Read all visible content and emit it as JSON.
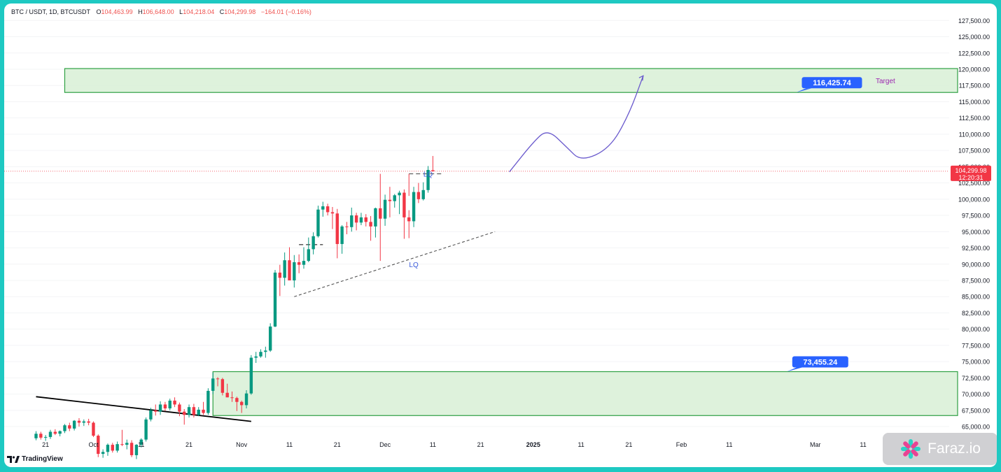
{
  "header": {
    "symbol": "BTC / USDT, 1D, BTCUSDT",
    "open_label": "O",
    "open": "104,463.99",
    "high_label": "H",
    "high": "106,648.00",
    "low_label": "L",
    "low": "104,218.04",
    "close_label": "C",
    "close": "104,299.98",
    "change": "−164.01 (−0.16%)"
  },
  "branding": {
    "tradingview": "TradingView",
    "watermark": "Faraz.io"
  },
  "colors": {
    "up": "#089981",
    "down": "#f23645",
    "zone_fill": "#d8f0d6",
    "zone_border": "#2ea043",
    "label_blue": "#2962ff",
    "projection": "#6a5acd",
    "target_text": "#9c27b0"
  },
  "chart_data": {
    "type": "candlestick",
    "title": "BTC / USDT, 1D, BTCUSDT",
    "y_axis": {
      "ylim": [
        63500,
        128500
      ],
      "ticks": [
        65000,
        67500,
        70000,
        72500,
        75000,
        77500,
        80000,
        82500,
        85000,
        87500,
        90000,
        92500,
        95000,
        97500,
        100000,
        102500,
        105000,
        107500,
        110000,
        112500,
        115000,
        117500,
        120000,
        122500,
        125000,
        127500
      ],
      "tick_labels": [
        "65,000.00",
        "67,500.00",
        "70,000.00",
        "72,500.00",
        "75,000.00",
        "77,500.00",
        "80,000.00",
        "82,500.00",
        "85,000.00",
        "87,500.00",
        "90,000.00",
        "92,500.00",
        "95,000.00",
        "97,500.00",
        "100,000.00",
        "102,500.00",
        "105,000.00",
        "107,500.00",
        "110,000.00",
        "112,500.00",
        "115,000.00",
        "117,500.00",
        "120,000.00",
        "122,500.00",
        "125,000.00",
        "127,500.00"
      ]
    },
    "x_axis": {
      "start_date": "2024-09-19",
      "ticks": [
        {
          "date": "2024-09-21",
          "label": "21"
        },
        {
          "date": "2024-10-01",
          "label": "Oct"
        },
        {
          "date": "2024-10-11",
          "label": "11"
        },
        {
          "date": "2024-10-21",
          "label": "21"
        },
        {
          "date": "2024-11-01",
          "label": "Nov"
        },
        {
          "date": "2024-11-11",
          "label": "11"
        },
        {
          "date": "2024-11-21",
          "label": "21"
        },
        {
          "date": "2024-12-01",
          "label": "Dec"
        },
        {
          "date": "2024-12-11",
          "label": "11"
        },
        {
          "date": "2024-12-21",
          "label": "21"
        },
        {
          "date": "2025-01-01",
          "label": "2025",
          "bold": true
        },
        {
          "date": "2025-01-11",
          "label": "11"
        },
        {
          "date": "2025-01-21",
          "label": "21"
        },
        {
          "date": "2025-02-01",
          "label": "Feb"
        },
        {
          "date": "2025-02-11",
          "label": "11"
        },
        {
          "date": "2025-03-01",
          "label": "Mar"
        },
        {
          "date": "2025-03-11",
          "label": "11"
        }
      ]
    },
    "candles": [
      {
        "o": 63200,
        "h": 64300,
        "l": 62900,
        "c": 63900
      },
      {
        "o": 63900,
        "h": 64200,
        "l": 63000,
        "c": 63300
      },
      {
        "o": 63300,
        "h": 63700,
        "l": 62800,
        "c": 63400
      },
      {
        "o": 63400,
        "h": 64500,
        "l": 63100,
        "c": 64200
      },
      {
        "o": 64200,
        "h": 64600,
        "l": 63700,
        "c": 63900
      },
      {
        "o": 63900,
        "h": 64400,
        "l": 63500,
        "c": 64300
      },
      {
        "o": 64300,
        "h": 65400,
        "l": 64000,
        "c": 65200
      },
      {
        "o": 65200,
        "h": 65600,
        "l": 64300,
        "c": 64700
      },
      {
        "o": 64700,
        "h": 66000,
        "l": 64400,
        "c": 65900
      },
      {
        "o": 65900,
        "h": 66300,
        "l": 65000,
        "c": 65600
      },
      {
        "o": 65600,
        "h": 66100,
        "l": 65100,
        "c": 65800
      },
      {
        "o": 65800,
        "h": 66200,
        "l": 65200,
        "c": 65600
      },
      {
        "o": 65600,
        "h": 65800,
        "l": 63400,
        "c": 63600
      },
      {
        "o": 63600,
        "h": 63800,
        "l": 60300,
        "c": 60800
      },
      {
        "o": 60800,
        "h": 61500,
        "l": 60200,
        "c": 61100
      },
      {
        "o": 61100,
        "h": 62400,
        "l": 60500,
        "c": 62200
      },
      {
        "o": 62200,
        "h": 62500,
        "l": 61000,
        "c": 61300
      },
      {
        "o": 61300,
        "h": 62700,
        "l": 61000,
        "c": 62300
      },
      {
        "o": 62300,
        "h": 64500,
        "l": 62000,
        "c": 62200
      },
      {
        "o": 62200,
        "h": 63000,
        "l": 61500,
        "c": 62500
      },
      {
        "o": 62500,
        "h": 62900,
        "l": 60300,
        "c": 60600
      },
      {
        "o": 60600,
        "h": 62300,
        "l": 60000,
        "c": 62200
      },
      {
        "o": 62200,
        "h": 63200,
        "l": 61800,
        "c": 63000
      },
      {
        "o": 63000,
        "h": 66400,
        "l": 62700,
        "c": 66100
      },
      {
        "o": 66100,
        "h": 67900,
        "l": 65800,
        "c": 67500
      },
      {
        "o": 67500,
        "h": 68400,
        "l": 66700,
        "c": 67300
      },
      {
        "o": 67300,
        "h": 68900,
        "l": 66800,
        "c": 68400
      },
      {
        "o": 68400,
        "h": 68800,
        "l": 67400,
        "c": 67800
      },
      {
        "o": 67800,
        "h": 69300,
        "l": 67500,
        "c": 69000
      },
      {
        "o": 69000,
        "h": 69500,
        "l": 68000,
        "c": 68400
      },
      {
        "o": 68400,
        "h": 68700,
        "l": 66600,
        "c": 67300
      },
      {
        "o": 67300,
        "h": 67700,
        "l": 65300,
        "c": 66800
      },
      {
        "o": 66800,
        "h": 68400,
        "l": 66400,
        "c": 68000
      },
      {
        "o": 68000,
        "h": 68500,
        "l": 66400,
        "c": 66800
      },
      {
        "o": 66800,
        "h": 68000,
        "l": 66600,
        "c": 67600
      },
      {
        "o": 67600,
        "h": 68800,
        "l": 66800,
        "c": 67100
      },
      {
        "o": 67100,
        "h": 70900,
        "l": 66800,
        "c": 70500
      },
      {
        "o": 70500,
        "h": 73300,
        "l": 70000,
        "c": 72400
      },
      {
        "o": 72400,
        "h": 72600,
        "l": 71200,
        "c": 72300
      },
      {
        "o": 72300,
        "h": 72500,
        "l": 69800,
        "c": 70200
      },
      {
        "o": 70200,
        "h": 71600,
        "l": 69500,
        "c": 69500
      },
      {
        "o": 69500,
        "h": 70400,
        "l": 68800,
        "c": 69400
      },
      {
        "o": 69400,
        "h": 69600,
        "l": 67400,
        "c": 68800
      },
      {
        "o": 68800,
        "h": 69000,
        "l": 67100,
        "c": 68300
      },
      {
        "o": 68300,
        "h": 70600,
        "l": 67800,
        "c": 70100
      },
      {
        "o": 70100,
        "h": 76000,
        "l": 69900,
        "c": 75600
      },
      {
        "o": 75600,
        "h": 76500,
        "l": 74800,
        "c": 75800
      },
      {
        "o": 75800,
        "h": 76900,
        "l": 75600,
        "c": 76500
      },
      {
        "o": 76500,
        "h": 77300,
        "l": 75600,
        "c": 76700
      },
      {
        "o": 76700,
        "h": 80900,
        "l": 76500,
        "c": 80400
      },
      {
        "o": 80400,
        "h": 89100,
        "l": 80300,
        "c": 88700
      },
      {
        "o": 88700,
        "h": 89900,
        "l": 85100,
        "c": 87900
      },
      {
        "o": 87900,
        "h": 91800,
        "l": 86700,
        "c": 90600
      },
      {
        "o": 90600,
        "h": 92600,
        "l": 87700,
        "c": 87500
      },
      {
        "o": 87500,
        "h": 91400,
        "l": 86400,
        "c": 90300
      },
      {
        "o": 90300,
        "h": 91500,
        "l": 88600,
        "c": 89900
      },
      {
        "o": 89900,
        "h": 92600,
        "l": 89300,
        "c": 90500
      },
      {
        "o": 90500,
        "h": 94100,
        "l": 90300,
        "c": 92300
      },
      {
        "o": 92300,
        "h": 94900,
        "l": 91500,
        "c": 94300
      },
      {
        "o": 94300,
        "h": 99000,
        "l": 94100,
        "c": 98400
      },
      {
        "o": 98400,
        "h": 99600,
        "l": 97300,
        "c": 98900
      },
      {
        "o": 98900,
        "h": 99300,
        "l": 97500,
        "c": 98000
      },
      {
        "o": 98000,
        "h": 98800,
        "l": 95400,
        "c": 97800
      },
      {
        "o": 97800,
        "h": 98500,
        "l": 90900,
        "c": 93100
      },
      {
        "o": 93100,
        "h": 96000,
        "l": 91600,
        "c": 95800
      },
      {
        "o": 95800,
        "h": 96500,
        "l": 94600,
        "c": 95700
      },
      {
        "o": 95700,
        "h": 98700,
        "l": 95000,
        "c": 97500
      },
      {
        "o": 97500,
        "h": 97900,
        "l": 95200,
        "c": 96400
      },
      {
        "o": 96400,
        "h": 97900,
        "l": 96000,
        "c": 97200
      },
      {
        "o": 97200,
        "h": 97700,
        "l": 95800,
        "c": 96500
      },
      {
        "o": 96500,
        "h": 97400,
        "l": 93600,
        "c": 95800
      },
      {
        "o": 95800,
        "h": 98700,
        "l": 94100,
        "c": 98600
      },
      {
        "o": 98600,
        "h": 103900,
        "l": 90500,
        "c": 97000
      },
      {
        "o": 97000,
        "h": 100700,
        "l": 95900,
        "c": 99900
      },
      {
        "o": 99900,
        "h": 101900,
        "l": 97200,
        "c": 99700
      },
      {
        "o": 99700,
        "h": 100800,
        "l": 98700,
        "c": 100600
      },
      {
        "o": 100600,
        "h": 101300,
        "l": 97700,
        "c": 101000
      },
      {
        "o": 101000,
        "h": 101500,
        "l": 93900,
        "c": 97200
      },
      {
        "o": 97200,
        "h": 98300,
        "l": 94000,
        "c": 96600
      },
      {
        "o": 96600,
        "h": 101900,
        "l": 95700,
        "c": 101100
      },
      {
        "o": 101100,
        "h": 102500,
        "l": 99400,
        "c": 100000
      },
      {
        "o": 100000,
        "h": 102600,
        "l": 99800,
        "c": 101400
      },
      {
        "o": 101400,
        "h": 105100,
        "l": 101000,
        "c": 104500
      },
      {
        "o": 104463.99,
        "h": 106648.0,
        "l": 104218.04,
        "c": 104299.98
      }
    ],
    "last_price": {
      "value": 104299.98,
      "label": "104,299.98",
      "countdown": "12:20:31"
    },
    "zones": [
      {
        "name": "Target",
        "from_date": "2024-09-25",
        "to_date": "2025-03-31",
        "y_low": 116425.74,
        "y_high": 120100
      },
      {
        "from_date": "2024-10-26",
        "to_date": "2025-03-31",
        "y_low": 66700,
        "y_high": 73455.24
      }
    ],
    "price_labels": [
      {
        "text": "116,425.74",
        "date": "2025-02-25",
        "value": 116425.74
      },
      {
        "text": "73,455.24",
        "date": "2025-02-23",
        "value": 73455.24
      }
    ],
    "zone_text": "Target",
    "annotations": [
      {
        "text": "LQ",
        "date": "2024-12-07",
        "value": 90000
      },
      {
        "text": "LQ",
        "date": "2024-12-10",
        "value": 103900
      }
    ],
    "lines": [
      {
        "kind": "trendline",
        "style": "solid",
        "color": "#000000",
        "from": {
          "date": "2024-09-19",
          "value": 69600
        },
        "to": {
          "date": "2024-11-03",
          "value": 65800
        }
      },
      {
        "kind": "trendline",
        "style": "dashed",
        "color": "#555555",
        "from": {
          "date": "2024-11-12",
          "value": 85000
        },
        "to": {
          "date": "2024-12-24",
          "value": 95000
        }
      },
      {
        "kind": "level",
        "style": "dashed",
        "color": "#000000",
        "from": {
          "date": "2024-11-13",
          "value": 93000
        },
        "to": {
          "date": "2024-11-18",
          "value": 93000
        }
      },
      {
        "kind": "level",
        "style": "dashed",
        "color": "#555555",
        "from": {
          "date": "2024-12-06",
          "value": 103900
        },
        "to": {
          "date": "2024-12-13",
          "value": 103900
        }
      }
    ],
    "projection": [
      {
        "date": "2024-12-27",
        "value": 104200
      },
      {
        "date": "2025-01-01",
        "value": 108800
      },
      {
        "date": "2025-01-04",
        "value": 110800
      },
      {
        "date": "2025-01-08",
        "value": 108000
      },
      {
        "date": "2025-01-11",
        "value": 105800
      },
      {
        "date": "2025-01-17",
        "value": 107800
      },
      {
        "date": "2025-01-21",
        "value": 113000
      },
      {
        "date": "2025-01-24",
        "value": 119000
      }
    ]
  }
}
